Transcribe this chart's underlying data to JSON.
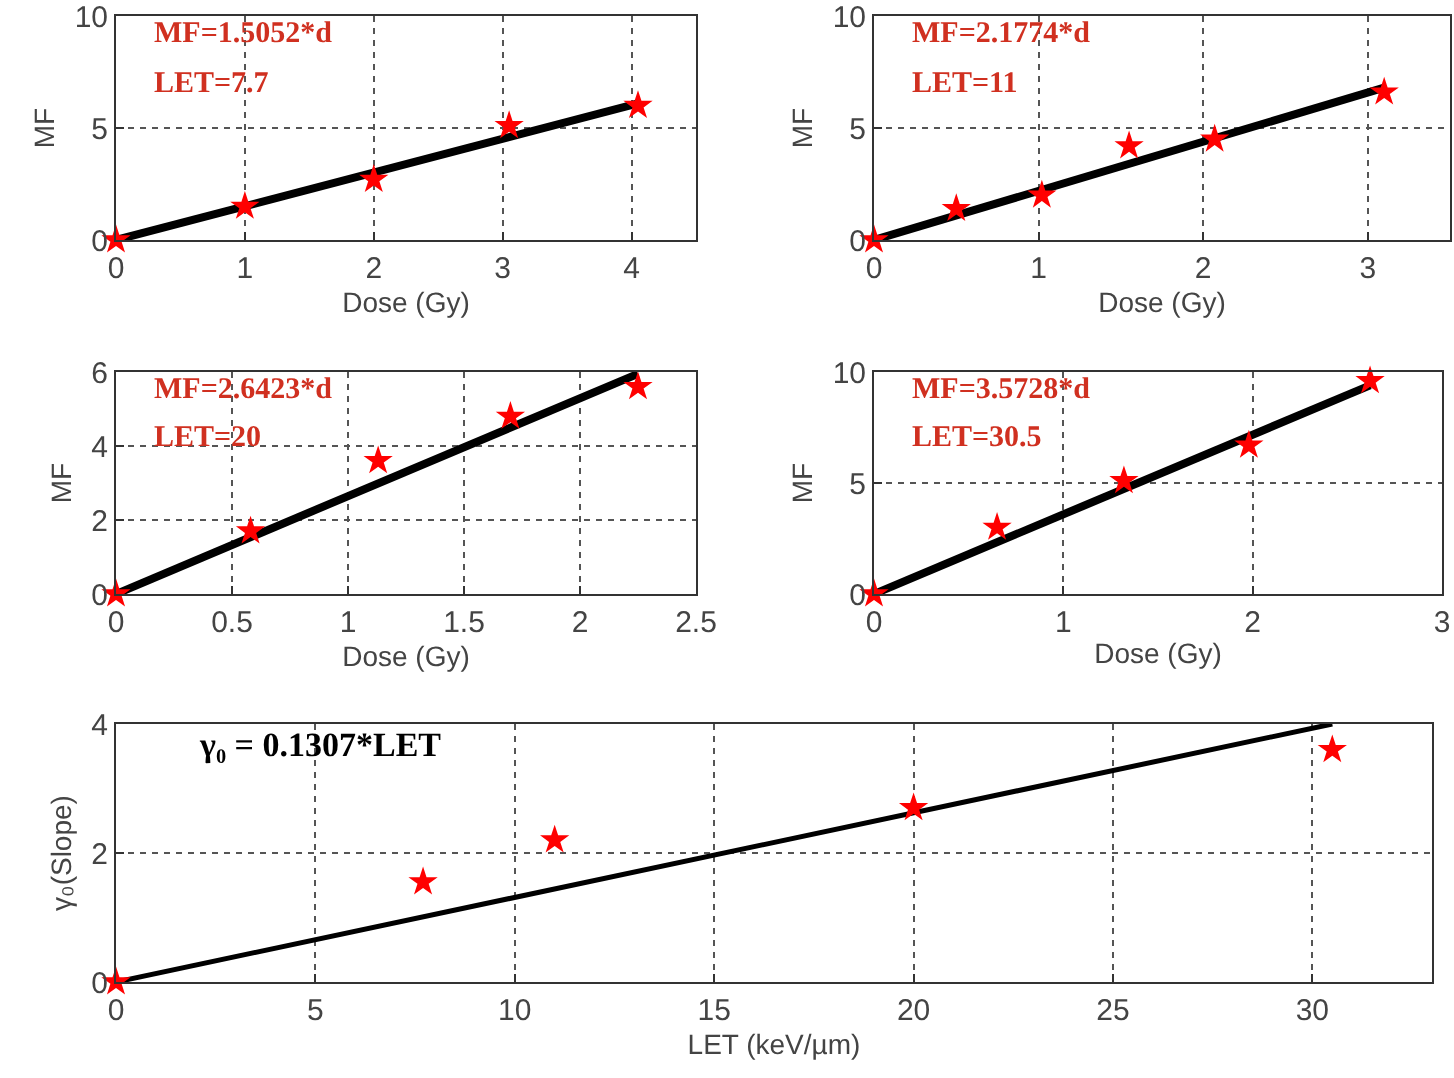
{
  "chart_data": [
    {
      "type": "scatter",
      "xlabel": "Dose (Gy)",
      "ylabel": "MF",
      "annotations": [
        "MF=1.5052*d",
        "LET=7.7"
      ],
      "xlim": [
        0,
        4.5
      ],
      "xticks": [
        0,
        1,
        2,
        3,
        4
      ],
      "ylim": [
        0,
        10
      ],
      "yticks": [
        0,
        5,
        10
      ],
      "grid": true,
      "marker": "star",
      "series": [
        {
          "type": "line",
          "marker": "none",
          "color": "#000000",
          "x": [
            0,
            4.05
          ],
          "values": [
            0,
            6.1
          ]
        },
        {
          "color": "#ff0000",
          "x": [
            0,
            1,
            2,
            3.05,
            4.05
          ],
          "values": [
            0,
            1.5,
            2.7,
            5.1,
            6.0
          ]
        }
      ]
    },
    {
      "type": "scatter",
      "xlabel": "Dose (Gy)",
      "ylabel": "MF",
      "annotations": [
        "MF=2.1774*d",
        "LET=11"
      ],
      "xlim": [
        0,
        3.5
      ],
      "xticks": [
        0,
        1,
        2,
        3
      ],
      "ylim": [
        0,
        10
      ],
      "yticks": [
        0,
        5,
        10
      ],
      "grid": true,
      "marker": "star",
      "series": [
        {
          "type": "line",
          "marker": "none",
          "color": "#000000",
          "x": [
            0,
            3.1
          ],
          "values": [
            0,
            6.8
          ]
        },
        {
          "color": "#ff0000",
          "x": [
            0,
            0.5,
            1.02,
            1.55,
            2.07,
            3.1
          ],
          "values": [
            0,
            1.4,
            2.0,
            4.2,
            4.5,
            6.6
          ]
        }
      ]
    },
    {
      "type": "scatter",
      "xlabel": "Dose (Gy)",
      "ylabel": "MF",
      "annotations": [
        "MF=2.6423*d",
        "LET=20"
      ],
      "xlim": [
        0,
        2.5
      ],
      "xticks": [
        0,
        0.5,
        1,
        1.5,
        2,
        2.5
      ],
      "ylim": [
        0,
        6
      ],
      "yticks": [
        0,
        2,
        4,
        6
      ],
      "grid": true,
      "marker": "star",
      "series": [
        {
          "type": "line",
          "marker": "none",
          "color": "#000000",
          "x": [
            0,
            2.25
          ],
          "values": [
            0,
            5.95
          ]
        },
        {
          "color": "#ff0000",
          "x": [
            0,
            0.58,
            1.13,
            1.7,
            2.25
          ],
          "values": [
            0,
            1.7,
            3.6,
            4.8,
            5.6
          ]
        }
      ]
    },
    {
      "type": "scatter",
      "xlabel": "Dose (Gy)",
      "ylabel": "MF",
      "annotations": [
        "MF=3.5728*d",
        "LET=30.5"
      ],
      "xlim": [
        0,
        3
      ],
      "xticks": [
        0,
        1,
        2,
        3
      ],
      "ylim": [
        0,
        10
      ],
      "yticks": [
        0,
        5,
        10
      ],
      "grid": true,
      "marker": "star",
      "series": [
        {
          "type": "line",
          "marker": "none",
          "color": "#000000",
          "x": [
            0,
            2.62
          ],
          "values": [
            0,
            9.4
          ]
        },
        {
          "color": "#ff0000",
          "x": [
            0,
            0.65,
            1.32,
            1.98,
            2.62
          ],
          "values": [
            0,
            3.0,
            5.1,
            6.7,
            9.6
          ]
        }
      ]
    },
    {
      "type": "scatter",
      "xlabel": "LET (keV/µm)",
      "ylabel": "γ₀(Slope)",
      "annotations": [
        "γ₀ = 0.1307*LET"
      ],
      "xlim": [
        0,
        33
      ],
      "xticks": [
        0,
        5,
        10,
        15,
        20,
        25,
        30
      ],
      "ylim": [
        0,
        4
      ],
      "yticks": [
        0,
        2,
        4
      ],
      "grid": true,
      "marker": "star",
      "series": [
        {
          "type": "line",
          "marker": "none",
          "color": "#000000",
          "x": [
            0,
            30.5
          ],
          "values": [
            0,
            4.0
          ]
        },
        {
          "color": "#ff0000",
          "x": [
            0,
            7.7,
            11,
            20,
            30.5
          ],
          "values": [
            0,
            1.55,
            2.2,
            2.7,
            3.6
          ]
        }
      ]
    }
  ]
}
